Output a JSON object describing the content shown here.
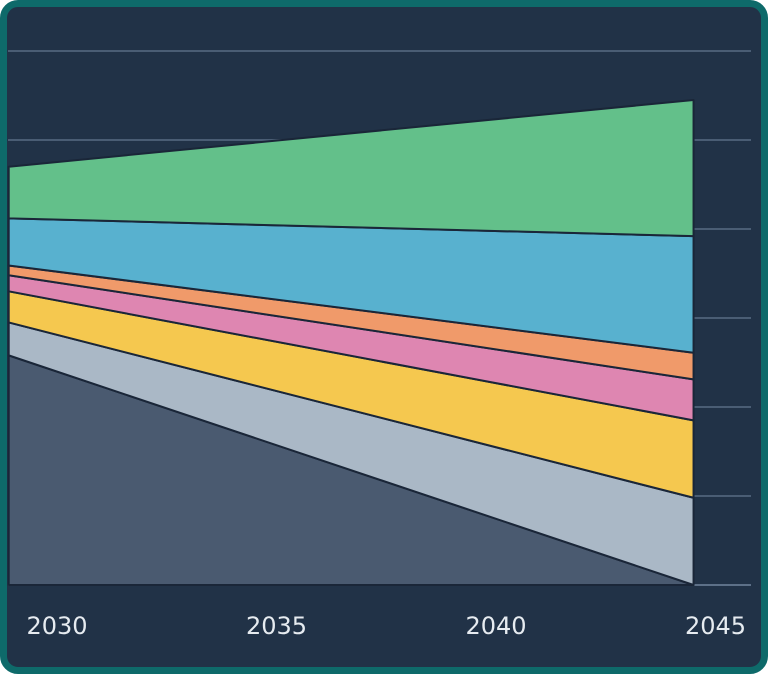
{
  "chart_data": {
    "type": "area",
    "stacked": true,
    "title": "",
    "xlabel": "",
    "ylabel": "",
    "x": [
      2028.9,
      2044.5
    ],
    "xlim": [
      2028.9,
      2045.5
    ],
    "ylim": [
      0,
      6
    ],
    "x_ticks": [
      "2030",
      "2035",
      "2040",
      "2045"
    ],
    "grid": "horizontal",
    "series": [
      {
        "values": [
          2.58,
          0.0
        ],
        "color": "#4a5a70"
      },
      {
        "values": [
          0.37,
          0.98
        ],
        "color": "#aab8c6"
      },
      {
        "values": [
          0.35,
          0.87
        ],
        "color": "#f5c84f"
      },
      {
        "values": [
          0.18,
          0.46
        ],
        "color": "#de86b1"
      },
      {
        "values": [
          0.11,
          0.3
        ],
        "color": "#f09a6a"
      },
      {
        "values": [
          0.53,
          1.31
        ],
        "color": "#58b1cf"
      },
      {
        "values": [
          0.58,
          1.53
        ],
        "color": "#63c08a"
      }
    ],
    "colors": {
      "background": "#213247",
      "frame": "#0e6a6a",
      "grid": "#4a5d74",
      "outline": "#1a2638"
    }
  }
}
